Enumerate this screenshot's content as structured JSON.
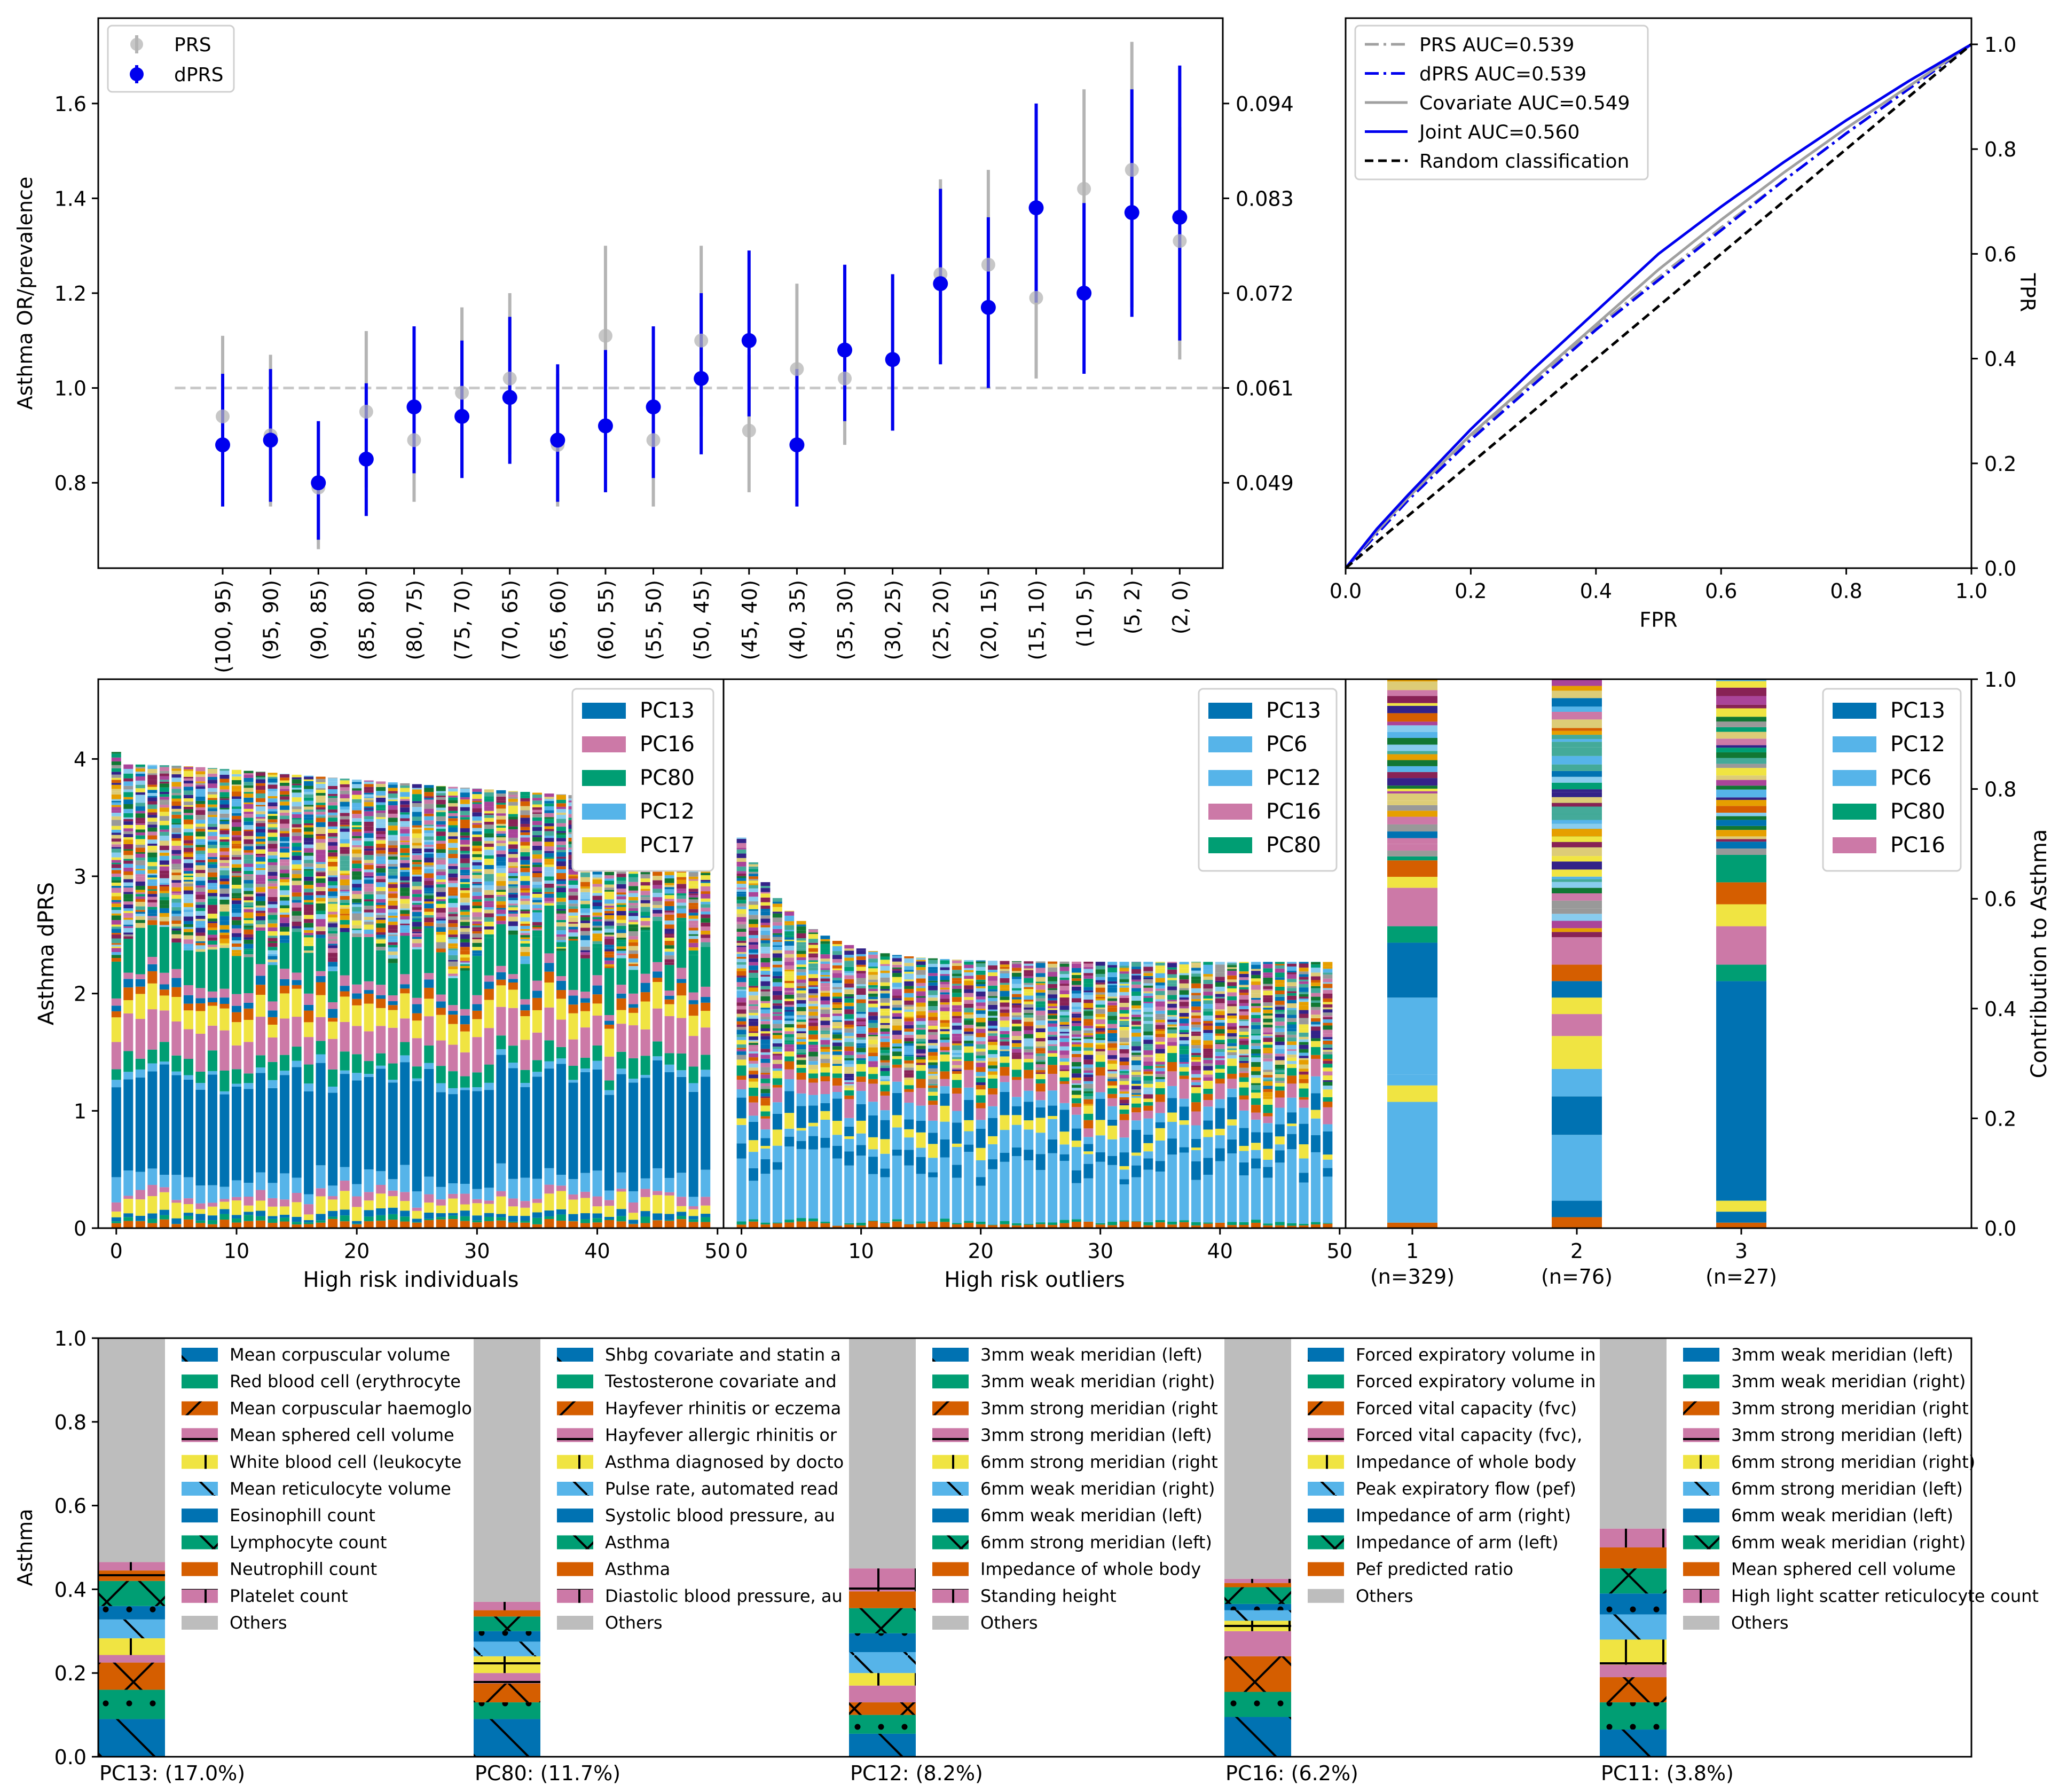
{
  "colors": {
    "prs": "#b4b4b4",
    "dprs": "#0000ee",
    "blue": "#0072b2",
    "sky": "#56b4e9",
    "pink": "#cc79a7",
    "green": "#009e73",
    "yellow": "#f0e442",
    "orange": "#d55e00",
    "gray": "#bdbdbd",
    "random": "#000000"
  },
  "chart_data": [
    {
      "type": "scatter",
      "panel": "or-prevalence",
      "ylabel": "Asthma OR/prevalence",
      "ylim": [
        0.62,
        1.78
      ],
      "yticks": [
        "0.8",
        "1.0",
        "1.2",
        "1.4",
        "1.6"
      ],
      "right_ticks": [
        "0.049",
        "0.061",
        "0.072",
        "0.083",
        "0.094"
      ],
      "categories": [
        "(100, 95)",
        "(95, 90)",
        "(90, 85)",
        "(85, 80)",
        "(80, 75)",
        "(75, 70)",
        "(70, 65)",
        "(65, 60)",
        "(60, 55)",
        "(55, 50)",
        "(50, 45)",
        "(45, 40)",
        "(40, 35)",
        "(35, 30)",
        "(30, 25)",
        "(25, 20)",
        "(20, 15)",
        "(15, 10)",
        "(10, 5)",
        "(5, 2)",
        "(2, 0)"
      ],
      "reference_line": 1.0,
      "legend": [
        "PRS",
        "dPRS"
      ],
      "series": [
        {
          "name": "PRS",
          "values": [
            0.94,
            0.9,
            0.79,
            0.95,
            0.89,
            0.99,
            1.02,
            0.88,
            1.11,
            0.89,
            1.1,
            0.91,
            1.04,
            1.02,
            1.06,
            1.24,
            1.26,
            1.19,
            1.42,
            1.46,
            1.31
          ],
          "low": [
            0.78,
            0.75,
            0.66,
            0.79,
            0.76,
            0.82,
            0.86,
            0.75,
            0.95,
            0.75,
            0.94,
            0.78,
            0.86,
            0.88,
            0.91,
            1.07,
            1.06,
            1.02,
            1.19,
            1.17,
            1.06
          ],
          "high": [
            1.11,
            1.07,
            0.93,
            1.12,
            1.06,
            1.17,
            1.2,
            1.03,
            1.3,
            1.06,
            1.3,
            1.07,
            1.22,
            1.19,
            1.24,
            1.44,
            1.46,
            1.39,
            1.63,
            1.73,
            1.55
          ]
        },
        {
          "name": "dPRS",
          "values": [
            0.88,
            0.89,
            0.8,
            0.85,
            0.96,
            0.94,
            0.98,
            0.89,
            0.92,
            0.96,
            1.02,
            1.1,
            0.88,
            1.08,
            1.06,
            1.22,
            1.17,
            1.38,
            1.2,
            1.37,
            1.36
          ],
          "low": [
            0.75,
            0.76,
            0.68,
            0.73,
            0.82,
            0.81,
            0.84,
            0.76,
            0.78,
            0.81,
            0.86,
            0.94,
            0.75,
            0.93,
            0.91,
            1.05,
            1.0,
            1.18,
            1.03,
            1.15,
            1.1
          ],
          "high": [
            1.03,
            1.04,
            0.93,
            1.01,
            1.13,
            1.1,
            1.15,
            1.05,
            1.08,
            1.13,
            1.2,
            1.29,
            1.04,
            1.26,
            1.24,
            1.42,
            1.36,
            1.6,
            1.39,
            1.63,
            1.68
          ]
        }
      ]
    },
    {
      "type": "line",
      "panel": "roc",
      "xlabel": "FPR",
      "ylabel": "TPR",
      "xlim": [
        0,
        1
      ],
      "ylim": [
        0,
        1.05
      ],
      "ticks": [
        "0.0",
        "0.2",
        "0.4",
        "0.6",
        "0.8",
        "1.0"
      ],
      "series": [
        {
          "name": "PRS AUC=0.539",
          "style": "dashdot",
          "x": [
            0,
            0.05,
            0.1,
            0.2,
            0.3,
            0.4,
            0.5,
            0.6,
            0.7,
            0.8,
            0.9,
            1.0
          ],
          "y": [
            0,
            0.07,
            0.135,
            0.25,
            0.355,
            0.46,
            0.555,
            0.65,
            0.74,
            0.83,
            0.915,
            1.0
          ]
        },
        {
          "name": "dPRS AUC=0.539",
          "style": "dashdot",
          "x": [
            0,
            0.05,
            0.1,
            0.2,
            0.3,
            0.4,
            0.5,
            0.6,
            0.7,
            0.8,
            0.9,
            1.0
          ],
          "y": [
            0,
            0.065,
            0.13,
            0.245,
            0.35,
            0.455,
            0.55,
            0.645,
            0.74,
            0.83,
            0.915,
            1.0
          ]
        },
        {
          "name": "Covariate AUC=0.549",
          "style": "solid",
          "x": [
            0,
            0.05,
            0.1,
            0.2,
            0.3,
            0.4,
            0.5,
            0.6,
            0.7,
            0.8,
            0.9,
            1.0
          ],
          "y": [
            0,
            0.07,
            0.135,
            0.255,
            0.36,
            0.465,
            0.57,
            0.665,
            0.755,
            0.84,
            0.92,
            1.0
          ]
        },
        {
          "name": "Joint AUC=0.560",
          "style": "solid",
          "x": [
            0,
            0.05,
            0.1,
            0.2,
            0.3,
            0.4,
            0.5,
            0.6,
            0.7,
            0.8,
            0.9,
            1.0
          ],
          "y": [
            0,
            0.075,
            0.14,
            0.265,
            0.38,
            0.49,
            0.6,
            0.69,
            0.775,
            0.855,
            0.93,
            1.0
          ]
        },
        {
          "name": "Random classification",
          "style": "dashed",
          "x": [
            0,
            1
          ],
          "y": [
            0,
            1
          ]
        }
      ]
    },
    {
      "type": "bar",
      "panel": "high-risk-individuals",
      "stacked": true,
      "xlabel": "High risk individuals",
      "ylabel": "Asthma dPRS",
      "ylim": [
        0,
        4.68
      ],
      "xlim": [
        -1.5,
        50.5
      ],
      "yticks": [
        "0",
        "1",
        "2",
        "3",
        "4"
      ],
      "xticks": [
        "0",
        "10",
        "20",
        "30",
        "40",
        "50"
      ],
      "n": 50,
      "total_first": 4.06,
      "total_last": 3.62,
      "legend": [
        "PC13",
        "PC16",
        "PC80",
        "PC12",
        "PC17"
      ]
    },
    {
      "type": "bar",
      "panel": "high-risk-outliers",
      "stacked": true,
      "xlabel": "High risk outliers",
      "ylim": [
        0,
        4.68
      ],
      "xlim": [
        -1.5,
        50.5
      ],
      "xticks": [
        "0",
        "10",
        "20",
        "30",
        "40",
        "50"
      ],
      "n": 50,
      "total_first": 3.33,
      "total_last": 2.27,
      "legend": [
        "PC13",
        "PC6",
        "PC12",
        "PC16",
        "PC80"
      ]
    },
    {
      "type": "bar",
      "panel": "clusters",
      "stacked": true,
      "ylabel": "Contribution to Asthma",
      "ylim": [
        0,
        1
      ],
      "yticks": [
        "0.0",
        "0.2",
        "0.4",
        "0.6",
        "0.8",
        "1.0"
      ],
      "categories": [
        "1",
        "2",
        "3"
      ],
      "category_counts": [
        "(n=329)",
        "(n=76)",
        "(n=27)"
      ],
      "legend": [
        "PC13",
        "PC12",
        "PC6",
        "PC80",
        "PC16"
      ]
    },
    {
      "type": "bar",
      "panel": "pc-loadings",
      "stacked": true,
      "ylabel": "Asthma",
      "ylim": [
        0,
        1
      ],
      "yticks": [
        "0.0",
        "0.2",
        "0.4",
        "0.6",
        "0.8",
        "1.0"
      ],
      "groups": [
        {
          "title": "PC13: (17.0%)",
          "values": [
            0.09,
            0.07,
            0.065,
            0.018,
            0.04,
            0.045,
            0.032,
            0.06,
            0.025,
            0.02
          ],
          "legend": [
            "Mean corpuscular volume",
            "Red blood cell (erythrocyte",
            "Mean corpuscular haemoglo",
            "Mean sphered cell volume",
            "White blood cell (leukocyte",
            "Mean reticulocyte volume",
            "Eosinophill count",
            "Lymphocyte count",
            "Neutrophill count",
            "Platelet count",
            "Others"
          ]
        },
        {
          "title": "PC80: (11.7%)",
          "values": [
            0.09,
            0.04,
            0.045,
            0.025,
            0.04,
            0.035,
            0.025,
            0.035,
            0.015,
            0.02
          ],
          "legend": [
            "Shbg covariate and statin a",
            "Testosterone covariate and",
            "Hayfever rhinitis or eczema",
            "Hayfever allergic rhinitis or",
            "Asthma diagnosed by docto",
            "Pulse rate, automated read",
            "Systolic blood pressure, au",
            "Asthma",
            "Asthma",
            "Diastolic blood pressure, au",
            "Others"
          ]
        },
        {
          "title": "PC12: (8.2%)",
          "values": [
            0.055,
            0.045,
            0.03,
            0.04,
            0.03,
            0.05,
            0.045,
            0.06,
            0.04,
            0.055
          ],
          "legend": [
            "3mm weak meridian (left)",
            "3mm weak meridian (right)",
            "3mm strong meridian (right",
            "3mm strong meridian (left)",
            "6mm strong meridian (right",
            "6mm weak meridian (right)",
            "6mm weak meridian (left)",
            "6mm strong meridian (left)",
            "Impedance of whole body",
            "Standing height",
            "Others"
          ]
        },
        {
          "title": "PC16: (6.2%)",
          "values": [
            0.095,
            0.06,
            0.085,
            0.06,
            0.025,
            0.025,
            0.015,
            0.04,
            0.01,
            0.01
          ],
          "legend": [
            "Forced expiratory volume in",
            "Forced expiratory volume in",
            "Forced vital capacity (fvc)",
            "Forced vital capacity (fvc),",
            "Impedance of whole body",
            "Peak expiratory flow (pef)",
            "Impedance of arm (right)",
            "Impedance of arm (left)",
            "Pef predicted ratio",
            "Others"
          ]
        },
        {
          "title": "PC11: (3.8%)",
          "values": [
            0.065,
            0.065,
            0.06,
            0.03,
            0.06,
            0.06,
            0.05,
            0.06,
            0.05,
            0.045
          ],
          "legend": [
            "3mm weak meridian (left)",
            "3mm weak meridian (right)",
            "3mm strong meridian (right",
            "3mm strong meridian (left)",
            "6mm strong meridian (right)",
            "6mm strong meridian (left)",
            "6mm weak meridian (left)",
            "6mm weak meridian (right)",
            "Mean sphered cell volume",
            "High light scatter reticulocyte count",
            "Others"
          ]
        }
      ]
    }
  ]
}
